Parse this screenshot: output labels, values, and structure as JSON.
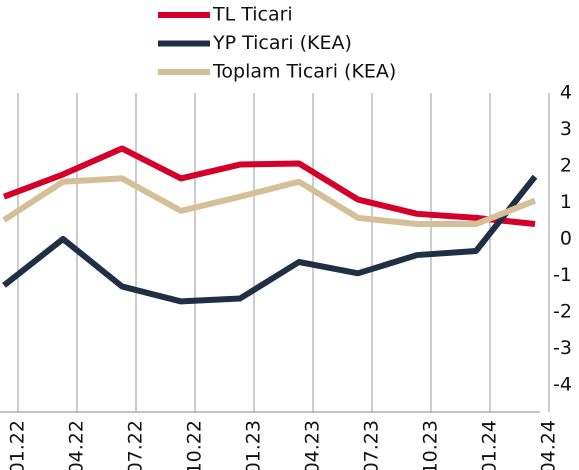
{
  "chart_data": {
    "type": "line",
    "categories": [
      "01.22",
      "04.22",
      "07.22",
      "10.22",
      "01.23",
      "04.23",
      "07.23",
      "10.23",
      "01.24",
      "04.24"
    ],
    "series": [
      {
        "name": "TL Ticari",
        "color": "#d4002a",
        "values": [
          1.16,
          1.77,
          2.48,
          1.66,
          2.04,
          2.07,
          1.08,
          0.69,
          0.58,
          0.41
        ]
      },
      {
        "name": "YP Ticari (KEA)",
        "color": "#1f3044",
        "values": [
          -1.27,
          0,
          -1.3,
          -1.71,
          -1.63,
          -0.63,
          -0.94,
          -0.44,
          -0.33,
          1.71
        ]
      },
      {
        "name": "Toplam Ticari (KEA)",
        "color": "#d5bf98",
        "values": [
          0.52,
          1.57,
          1.66,
          0.77,
          1.16,
          1.57,
          0.58,
          0.41,
          0.41,
          1.05
        ]
      }
    ],
    "ylim": [
      -4,
      4
    ],
    "yticks": [
      -4,
      -3,
      -2,
      -1,
      0,
      1,
      2,
      3,
      4
    ],
    "grid": true
  }
}
